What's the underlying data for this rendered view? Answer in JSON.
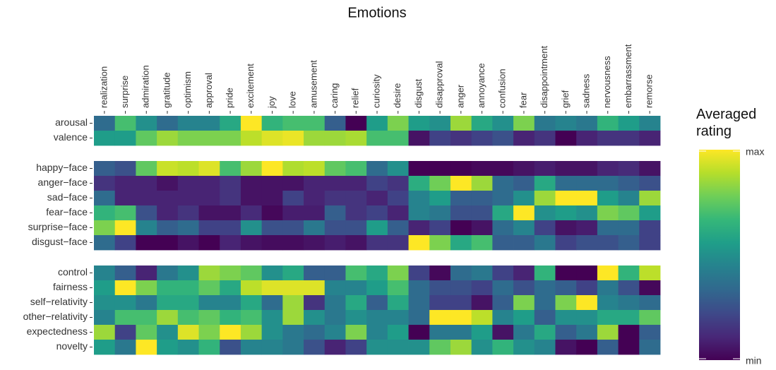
{
  "chart_data": {
    "type": "heatmap",
    "title": "Emotions",
    "columns": [
      "realization",
      "surprise",
      "admiration",
      "gratitude",
      "optimism",
      "approval",
      "pride",
      "excitement",
      "joy",
      "love",
      "amusement",
      "caring",
      "relief",
      "curiosity",
      "desire",
      "disgust",
      "disapproval",
      "anger",
      "annoyance",
      "confusion",
      "fear",
      "disappointment",
      "grief",
      "sadness",
      "nervousness",
      "embarrassment",
      "remorse"
    ],
    "groups": [
      {
        "rows": [
          "arousal",
          "valence"
        ],
        "values": [
          [
            0.35,
            0.7,
            0.5,
            0.35,
            0.45,
            0.45,
            0.6,
            1.0,
            0.65,
            0.7,
            0.7,
            0.3,
            0.0,
            0.55,
            0.8,
            0.55,
            0.5,
            0.85,
            0.6,
            0.5,
            0.8,
            0.4,
            0.45,
            0.4,
            0.65,
            0.55,
            0.45
          ],
          [
            0.55,
            0.55,
            0.75,
            0.85,
            0.8,
            0.8,
            0.8,
            0.9,
            0.95,
            0.97,
            0.85,
            0.85,
            0.87,
            0.7,
            0.7,
            0.05,
            0.2,
            0.15,
            0.2,
            0.25,
            0.1,
            0.15,
            0.0,
            0.1,
            0.15,
            0.15,
            0.1
          ]
        ]
      },
      {
        "rows": [
          "happy−face",
          "anger−face",
          "sad−face",
          "fear−face",
          "surprise−face",
          "disgust−face"
        ],
        "values": [
          [
            0.3,
            0.25,
            0.75,
            0.92,
            0.9,
            0.95,
            0.7,
            0.85,
            1.0,
            0.88,
            0.9,
            0.75,
            0.7,
            0.35,
            0.5,
            0.0,
            0.0,
            0.0,
            0.02,
            0.02,
            0.05,
            0.08,
            0.05,
            0.05,
            0.1,
            0.12,
            0.05
          ],
          [
            0.15,
            0.1,
            0.1,
            0.05,
            0.1,
            0.1,
            0.15,
            0.05,
            0.05,
            0.05,
            0.1,
            0.1,
            0.1,
            0.2,
            0.15,
            0.62,
            0.78,
            1.0,
            0.85,
            0.35,
            0.3,
            0.6,
            0.35,
            0.35,
            0.35,
            0.3,
            0.25
          ],
          [
            0.35,
            0.1,
            0.1,
            0.1,
            0.1,
            0.1,
            0.15,
            0.05,
            0.05,
            0.2,
            0.1,
            0.15,
            0.15,
            0.1,
            0.2,
            0.45,
            0.55,
            0.3,
            0.3,
            0.35,
            0.5,
            0.85,
            1.0,
            1.0,
            0.55,
            0.45,
            0.85
          ],
          [
            0.65,
            0.7,
            0.25,
            0.1,
            0.15,
            0.05,
            0.05,
            0.12,
            0.02,
            0.08,
            0.08,
            0.3,
            0.15,
            0.2,
            0.1,
            0.45,
            0.4,
            0.25,
            0.25,
            0.6,
            1.0,
            0.5,
            0.55,
            0.5,
            0.8,
            0.75,
            0.55
          ],
          [
            0.8,
            1.0,
            0.45,
            0.3,
            0.35,
            0.2,
            0.2,
            0.5,
            0.25,
            0.25,
            0.4,
            0.25,
            0.25,
            0.55,
            0.3,
            0.1,
            0.2,
            0.0,
            0.05,
            0.35,
            0.45,
            0.2,
            0.05,
            0.08,
            0.35,
            0.35,
            0.2
          ],
          [
            0.35,
            0.2,
            0.0,
            0.0,
            0.05,
            0.0,
            0.1,
            0.05,
            0.03,
            0.03,
            0.05,
            0.08,
            0.05,
            0.15,
            0.15,
            1.0,
            0.8,
            0.6,
            0.7,
            0.3,
            0.3,
            0.4,
            0.2,
            0.25,
            0.25,
            0.3,
            0.2
          ]
        ]
      },
      {
        "rows": [
          "control",
          "fairness",
          "self−relativity",
          "other−relativity",
          "expectedness",
          "novelty"
        ],
        "values": [
          [
            0.45,
            0.3,
            0.1,
            0.4,
            0.5,
            0.85,
            0.8,
            0.75,
            0.5,
            0.6,
            0.3,
            0.3,
            0.7,
            0.6,
            0.8,
            0.2,
            0.02,
            0.35,
            0.4,
            0.2,
            0.1,
            0.65,
            0.0,
            0.0,
            1.0,
            0.65,
            0.9
          ],
          [
            0.55,
            1.0,
            0.8,
            0.65,
            0.65,
            0.75,
            0.6,
            0.9,
            0.95,
            0.95,
            0.95,
            0.45,
            0.45,
            0.55,
            0.7,
            0.35,
            0.25,
            0.25,
            0.2,
            0.35,
            0.25,
            0.35,
            0.3,
            0.2,
            0.4,
            0.25,
            0.02
          ],
          [
            0.5,
            0.5,
            0.4,
            0.6,
            0.6,
            0.45,
            0.45,
            0.6,
            0.35,
            0.85,
            0.15,
            0.4,
            0.6,
            0.3,
            0.6,
            0.35,
            0.2,
            0.2,
            0.05,
            0.3,
            0.8,
            0.35,
            0.8,
            1.0,
            0.45,
            0.4,
            0.35
          ],
          [
            0.45,
            0.7,
            0.7,
            0.85,
            0.7,
            0.75,
            0.65,
            0.7,
            0.5,
            0.85,
            0.5,
            0.4,
            0.5,
            0.45,
            0.45,
            0.35,
            1.0,
            1.0,
            0.9,
            0.45,
            0.55,
            0.3,
            0.5,
            0.5,
            0.6,
            0.6,
            0.75
          ],
          [
            0.85,
            0.2,
            0.75,
            0.5,
            0.95,
            0.8,
            1.0,
            0.85,
            0.5,
            0.4,
            0.35,
            0.45,
            0.8,
            0.45,
            0.55,
            0.0,
            0.4,
            0.4,
            0.55,
            0.05,
            0.4,
            0.6,
            0.3,
            0.4,
            0.85,
            0.0,
            0.3
          ],
          [
            0.55,
            0.4,
            1.0,
            0.55,
            0.5,
            0.65,
            0.25,
            0.45,
            0.45,
            0.4,
            0.25,
            0.1,
            0.2,
            0.5,
            0.5,
            0.5,
            0.75,
            0.85,
            0.5,
            0.65,
            0.5,
            0.45,
            0.05,
            0.0,
            0.3,
            0.0,
            0.35
          ]
        ]
      }
    ],
    "zlim": [
      0,
      1
    ],
    "colorscale": [
      "#440154",
      "#482878",
      "#3e4989",
      "#31688e",
      "#26828e",
      "#1f9e89",
      "#35b779",
      "#6ece58",
      "#b5de2b",
      "#fde725"
    ],
    "legend": {
      "title": "Averaged rating",
      "max_label": "max",
      "min_label": "min"
    }
  }
}
